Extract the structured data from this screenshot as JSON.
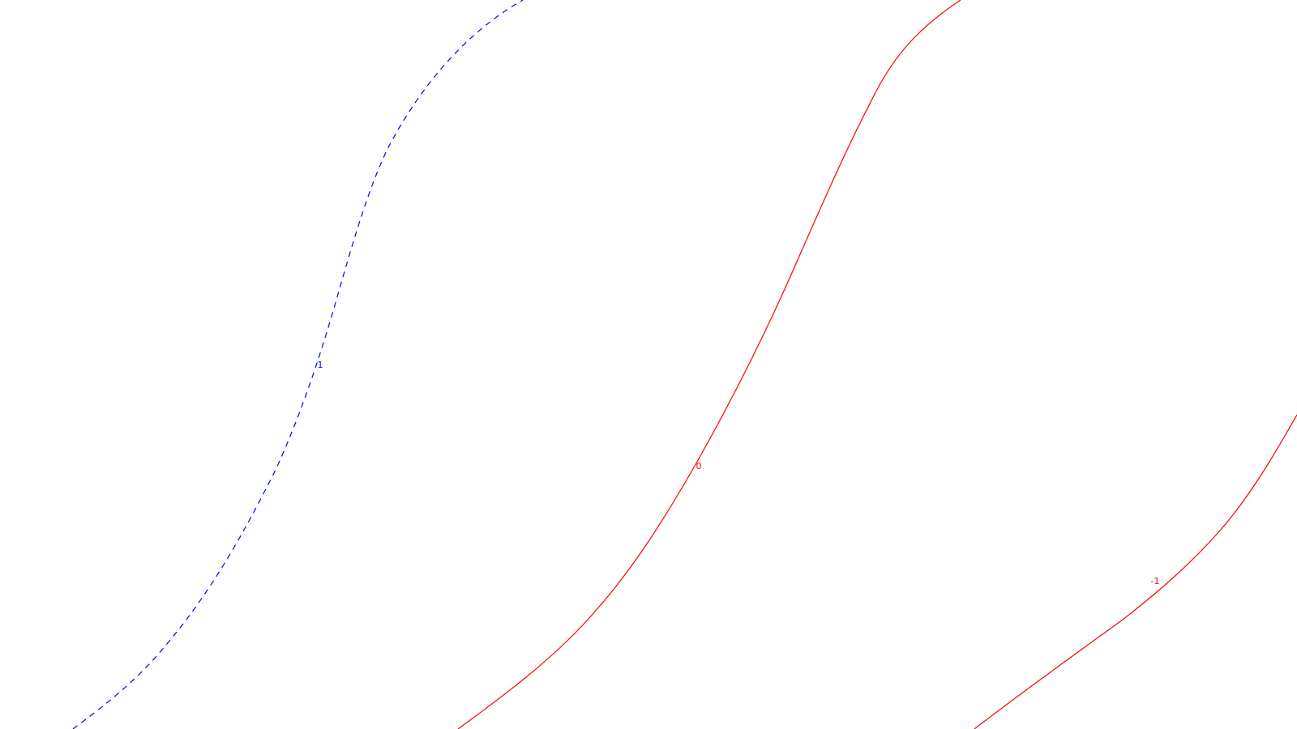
{
  "colors": {
    "background": "#ffffff",
    "negative_or_zero": "#ff0000",
    "positive": "#0000ff"
  },
  "contours": [
    {
      "id": "contour-plus-1",
      "level": 1,
      "label": "1",
      "style": "dashed",
      "color": "#0000ff"
    },
    {
      "id": "contour-zero",
      "level": 0,
      "label": "0",
      "style": "solid",
      "color": "#ff0000"
    },
    {
      "id": "contour-minus-1",
      "level": -1,
      "label": "-1",
      "style": "solid",
      "color": "#ff0000"
    }
  ]
}
